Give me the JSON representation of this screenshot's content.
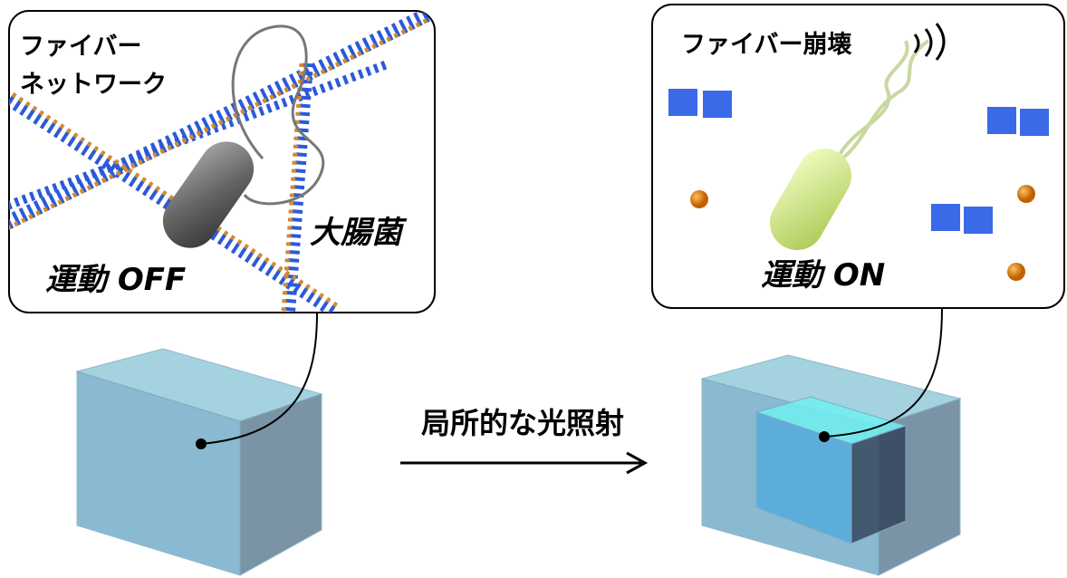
{
  "left_panel": {
    "fiber_label": [
      "ファイバー",
      "ネットワーク"
    ],
    "bacteria_label": "大腸菌",
    "motility_label": "運動 OFF"
  },
  "right_panel": {
    "fiber_label": "ファイバー崩壊",
    "motility_label": "運動 ON"
  },
  "arrow_label": "局所的な光照射"
}
